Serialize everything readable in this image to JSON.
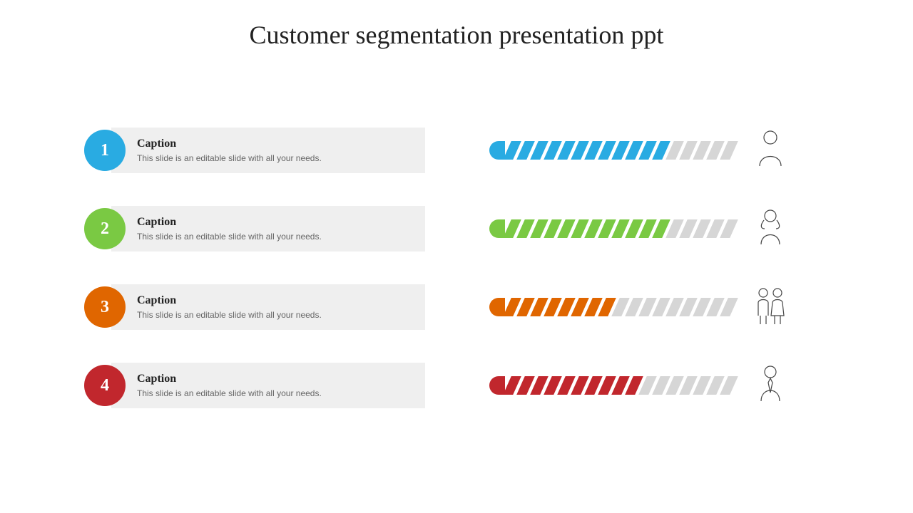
{
  "title": "Customer segmentation presentation ppt",
  "colors": {
    "bg_box": "#efefef",
    "inactive": "#d6d6d6"
  },
  "rows": [
    {
      "num": "1",
      "color": "#29abe2",
      "caption": "Caption",
      "desc": "This slide is an editable slide with all your needs.",
      "filled": 13,
      "total": 18,
      "icon": "man"
    },
    {
      "num": "2",
      "color": "#7ac943",
      "caption": "Caption",
      "desc": "This slide is an editable slide with all your needs.",
      "filled": 13,
      "total": 18,
      "icon": "woman"
    },
    {
      "num": "3",
      "color": "#e06600",
      "caption": "Caption",
      "desc": "This slide is an editable slide with all your needs.",
      "filled": 9,
      "total": 18,
      "icon": "couple"
    },
    {
      "num": "4",
      "color": "#c1272d",
      "caption": "Caption",
      "desc": "This slide is an editable slide with all your needs.",
      "filled": 11,
      "total": 18,
      "icon": "man-tie"
    }
  ]
}
